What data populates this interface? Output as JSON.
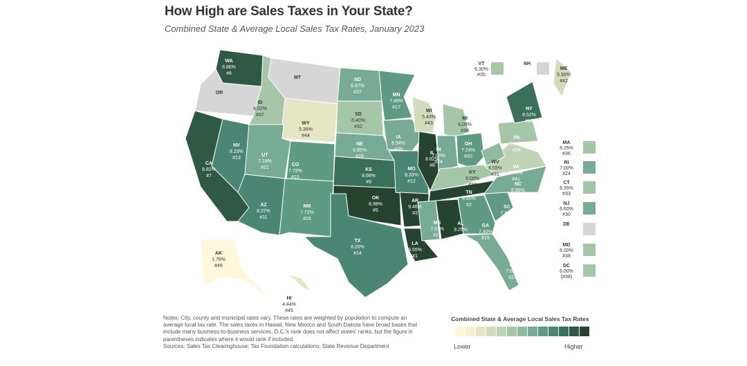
{
  "title": "How High are Sales Taxes in Your State?",
  "subtitle": "Combined State & Average Local Sales Tax Rates, January 2023",
  "notes": [
    "Notes: City, county and municipal rates vary. These rates are weighted by population to compute an average local tax rate. The sales taxes in Hawaii, New Mexico and South Dakota have broad bases that include many business-to-business services. D.C.'s rank does not affect states' ranks, but the figure in parentheses indicates where it would rank if included.",
    "Sources: Sales Tax Clearinghouse; Tax Foundation calculations; State Revenue Department"
  ],
  "legend": {
    "title": "Combined State & Average Local Sales Tax Rates",
    "low": "Lower",
    "high": "Higher",
    "colors": [
      "#fdf8dc",
      "#f3f0cf",
      "#e4e6c4",
      "#d2ddbd",
      "#bfd3b5",
      "#a6c6a8",
      "#8fb9a0",
      "#77ab96",
      "#5f9a85",
      "#4a8673",
      "#3a6f5c",
      "#2f5845",
      "#26432f"
    ]
  },
  "states": [
    {
      "abbr": "WA",
      "rate": "8.86%",
      "rank": "#6",
      "color": "#2f5845",
      "text": "#ffffff"
    },
    {
      "abbr": "OR",
      "rate": "",
      "rank": "",
      "color": "#d6d6d6",
      "text": "#333333"
    },
    {
      "abbr": "CA",
      "rate": "8.82%",
      "rank": "#7",
      "color": "#2f5845",
      "text": "#ffffff"
    },
    {
      "abbr": "NV",
      "rate": "8.23%",
      "rank": "#13",
      "color": "#4a8673",
      "text": "#ffffff"
    },
    {
      "abbr": "ID",
      "rate": "6.02%",
      "rank": "#37",
      "color": "#a6c6a8",
      "text": "#333333"
    },
    {
      "abbr": "MT",
      "rate": "",
      "rank": "",
      "color": "#d6d6d6",
      "text": "#333333"
    },
    {
      "abbr": "WY",
      "rate": "5.36%",
      "rank": "#44",
      "color": "#e4e6c4",
      "text": "#333333"
    },
    {
      "abbr": "UT",
      "rate": "7.19%",
      "rank": "#21",
      "color": "#77ab96",
      "text": "#ffffff"
    },
    {
      "abbr": "CO",
      "rate": "7.78%",
      "rank": "#15",
      "color": "#5f9a85",
      "text": "#ffffff"
    },
    {
      "abbr": "AZ",
      "rate": "8.37%",
      "rank": "#11",
      "color": "#4a8673",
      "text": "#ffffff"
    },
    {
      "abbr": "NM",
      "rate": "7.72%",
      "rank": "#16",
      "color": "#5f9a85",
      "text": "#ffffff"
    },
    {
      "abbr": "ND",
      "rate": "6.97%",
      "rank": "#27",
      "color": "#77ab96",
      "text": "#ffffff"
    },
    {
      "abbr": "SD",
      "rate": "6.40%",
      "rank": "#32",
      "color": "#a6c6a8",
      "text": "#333333"
    },
    {
      "abbr": "NE",
      "rate": "6.95%",
      "rank": "#28",
      "color": "#77ab96",
      "text": "#ffffff"
    },
    {
      "abbr": "KS",
      "rate": "8.66%",
      "rank": "#9",
      "color": "#3a6f5c",
      "text": "#ffffff"
    },
    {
      "abbr": "OK",
      "rate": "8.98%",
      "rank": "#5",
      "color": "#26432f",
      "text": "#ffffff"
    },
    {
      "abbr": "TX",
      "rate": "8.20%",
      "rank": "#14",
      "color": "#4a8673",
      "text": "#ffffff"
    },
    {
      "abbr": "MN",
      "rate": "7.49%",
      "rank": "#17",
      "color": "#5f9a85",
      "text": "#ffffff"
    },
    {
      "abbr": "IA",
      "rate": "6.94%",
      "rank": "#29",
      "color": "#77ab96",
      "text": "#ffffff"
    },
    {
      "abbr": "MO",
      "rate": "8.33%",
      "rank": "#12",
      "color": "#4a8673",
      "text": "#ffffff"
    },
    {
      "abbr": "AR",
      "rate": "9.46%",
      "rank": "#3",
      "color": "#26432f",
      "text": "#ffffff"
    },
    {
      "abbr": "LA",
      "rate": "9.55%",
      "rank": "#1",
      "color": "#26432f",
      "text": "#ffffff"
    },
    {
      "abbr": "WI",
      "rate": "5.43%",
      "rank": "#43",
      "color": "#d2ddbd",
      "text": "#333333"
    },
    {
      "abbr": "IL",
      "rate": "8.82%",
      "rank": "#8",
      "color": "#26432f",
      "text": "#ffffff"
    },
    {
      "abbr": "MI",
      "rate": "6.00%",
      "rank": "#38",
      "color": "#a6c6a8",
      "text": "#333333"
    },
    {
      "abbr": "IN",
      "rate": "7.00%",
      "rank": "#24",
      "color": "#77ab96",
      "text": "#ffffff"
    },
    {
      "abbr": "OH",
      "rate": "7.24%",
      "rank": "#20",
      "color": "#5f9a85",
      "text": "#ffffff"
    },
    {
      "abbr": "KY",
      "rate": "6.00%",
      "rank": "#38",
      "color": "#a6c6a8",
      "text": "#333333"
    },
    {
      "abbr": "TN",
      "rate": "9.55%",
      "rank": "#2",
      "color": "#26432f",
      "text": "#ffffff"
    },
    {
      "abbr": "MS",
      "rate": "7.07%",
      "rank": "#22",
      "color": "#77ab96",
      "text": "#ffffff"
    },
    {
      "abbr": "AL",
      "rate": "9.25%",
      "rank": "#4",
      "color": "#26432f",
      "text": "#ffffff"
    },
    {
      "abbr": "GA",
      "rate": "7.40%",
      "rank": "#19",
      "color": "#5f9a85",
      "text": "#ffffff"
    },
    {
      "abbr": "FL",
      "rate": "7.02%",
      "rank": "#23",
      "color": "#77ab96",
      "text": "#ffffff"
    },
    {
      "abbr": "SC",
      "rate": "7.43%",
      "rank": "#18",
      "color": "#5f9a85",
      "text": "#ffffff"
    },
    {
      "abbr": "NC",
      "rate": "6.99%",
      "rank": "#26",
      "color": "#77ab96",
      "text": "#ffffff"
    },
    {
      "abbr": "VA",
      "rate": "5.75%",
      "rank": "#41",
      "color": "#bfd3b5",
      "text": "#ffffff"
    },
    {
      "abbr": "WV",
      "rate": "6.55%",
      "rank": "#31",
      "color": "#8fb9a0",
      "text": "#333333"
    },
    {
      "abbr": "PA",
      "rate": "6.34%",
      "rank": "#34",
      "color": "#a6c6a8",
      "text": "#ffffff"
    },
    {
      "abbr": "NY",
      "rate": "8.52%",
      "rank": "#10",
      "color": "#3a6f5c",
      "text": "#ffffff"
    },
    {
      "abbr": "ME",
      "rate": "5.50%",
      "rank": "#42",
      "color": "#d2ddbd",
      "text": "#333333"
    },
    {
      "abbr": "AK",
      "rate": "1.76%",
      "rank": "#46",
      "color": "#fdf8dc",
      "text": "#333333"
    },
    {
      "abbr": "HI",
      "rate": "4.44%",
      "rank": "#45",
      "color": "#e4e6c4",
      "text": "#333333"
    }
  ],
  "side_boxes": [
    {
      "abbr": "VT",
      "rate": "6.30%",
      "rank": "#35",
      "color": "#a6c6a8"
    },
    {
      "abbr": "NH",
      "rate": "",
      "rank": "",
      "color": "#d6d6d6"
    },
    {
      "abbr": "MA",
      "rate": "6.25%",
      "rank": "#36",
      "color": "#a6c6a8"
    },
    {
      "abbr": "RI",
      "rate": "7.00%",
      "rank": "#24",
      "color": "#77ab96"
    },
    {
      "abbr": "CT",
      "rate": "6.35%",
      "rank": "#33",
      "color": "#a6c6a8"
    },
    {
      "abbr": "NJ",
      "rate": "6.60%",
      "rank": "#30",
      "color": "#77ab96"
    },
    {
      "abbr": "DE",
      "rate": "",
      "rank": "",
      "color": "#d6d6d6"
    },
    {
      "abbr": "MD",
      "rate": "6.00%",
      "rank": "#38",
      "color": "#a6c6a8"
    },
    {
      "abbr": "DC",
      "rate": "6.00%",
      "rank": "(#38)",
      "color": "#a6c6a8"
    }
  ]
}
